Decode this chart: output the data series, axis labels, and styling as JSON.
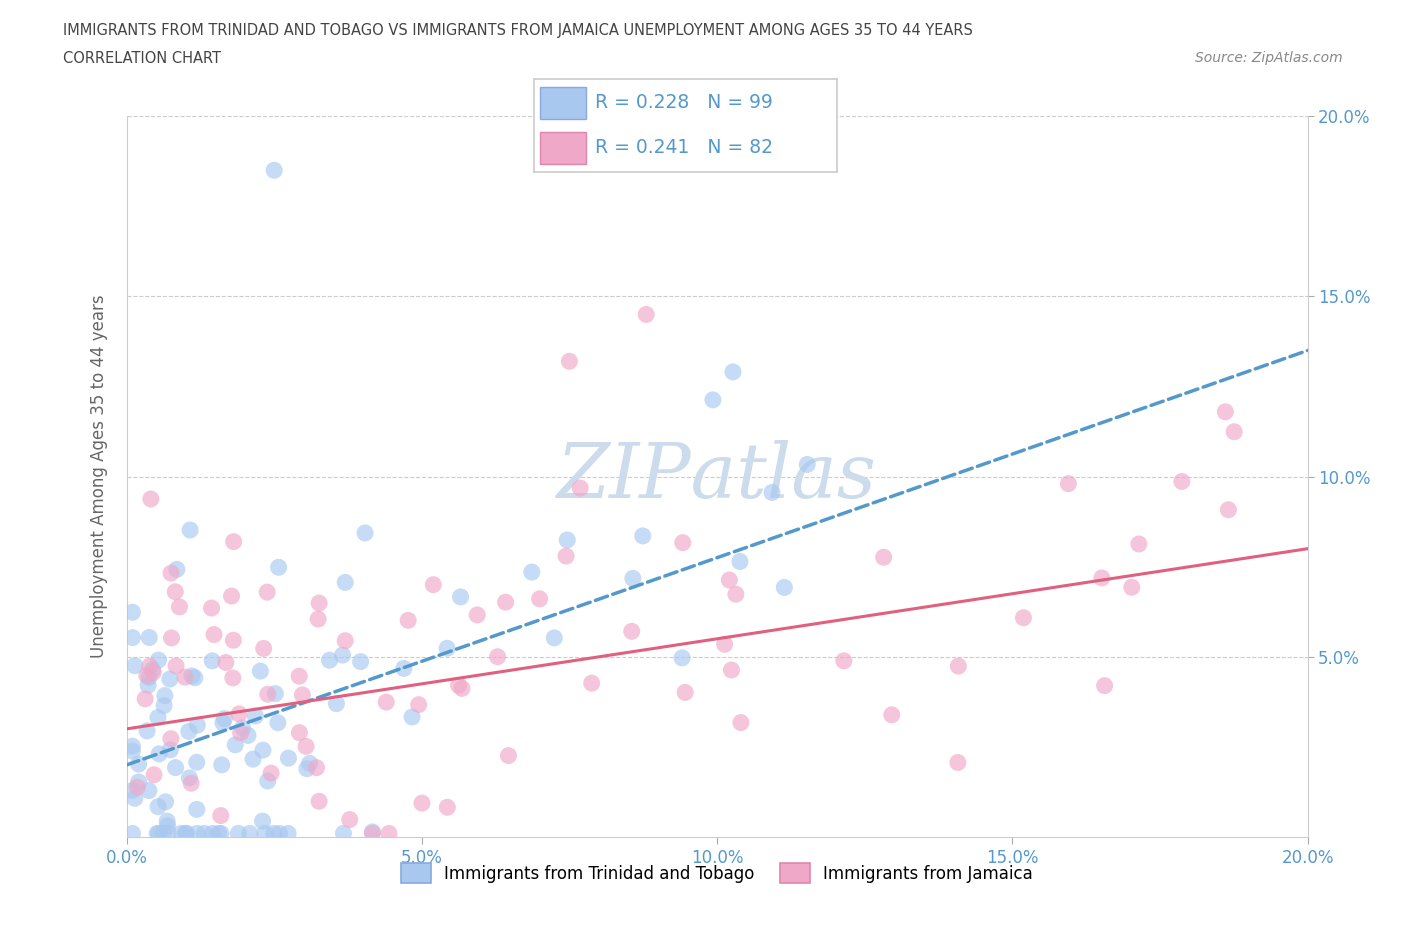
{
  "title_line1": "IMMIGRANTS FROM TRINIDAD AND TOBAGO VS IMMIGRANTS FROM JAMAICA UNEMPLOYMENT AMONG AGES 35 TO 44 YEARS",
  "title_line2": "CORRELATION CHART",
  "source_text": "Source: ZipAtlas.com",
  "ylabel": "Unemployment Among Ages 35 to 44 years",
  "xlim": [
    0.0,
    0.2
  ],
  "ylim": [
    0.0,
    0.2
  ],
  "xticks": [
    0.0,
    0.05,
    0.1,
    0.15,
    0.2
  ],
  "yticks": [
    0.05,
    0.1,
    0.15,
    0.2
  ],
  "xticklabels": [
    "0.0%",
    "5.0%",
    "10.0%",
    "15.0%",
    "20.0%"
  ],
  "yticklabels_right": [
    "5.0%",
    "10.0%",
    "15.0%",
    "20.0%"
  ],
  "legend_labels": [
    "Immigrants from Trinidad and Tobago",
    "Immigrants from Jamaica"
  ],
  "R_tt": 0.228,
  "N_tt": 99,
  "R_jm": 0.241,
  "N_jm": 82,
  "color_tt": "#a8c8f0",
  "color_jm": "#f0a8c8",
  "line_color_tt": "#5599cc",
  "line_color_jm": "#e06080",
  "grid_color": "#cccccc",
  "title_color": "#444444",
  "watermark_color": "#ccdcec",
  "axis_tick_color": "#5599cc",
  "source_color": "#888888"
}
